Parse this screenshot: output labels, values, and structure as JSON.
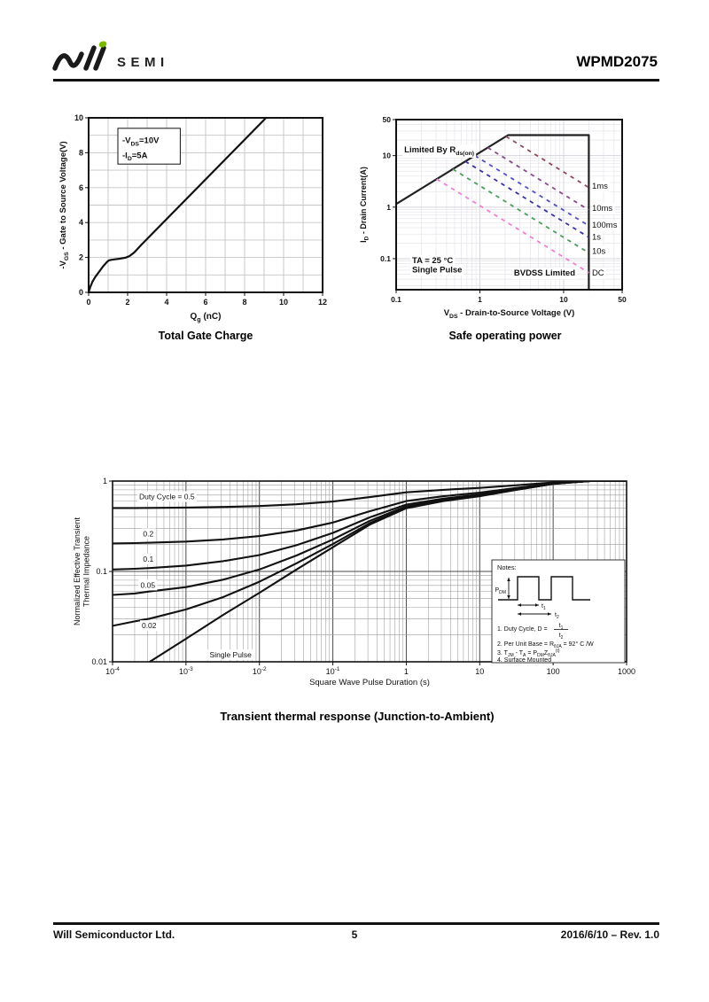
{
  "header": {
    "logo_sub": "SEMI",
    "part_number": "WPMD2075",
    "logo_dot_color": "#7ab800"
  },
  "footer": {
    "company": "Will Semiconductor Ltd.",
    "page": "5",
    "revision": "2016/6/10 – Rev. 1.0"
  },
  "chart_data": [
    {
      "id": "gate-charge",
      "type": "line",
      "title": "Total Gate Charge",
      "x_axis": {
        "scale": "linear",
        "min": 0,
        "max": 12,
        "grid_step": 1,
        "ticks": [
          0,
          2,
          4,
          6,
          8,
          10,
          12
        ],
        "tick_labels": [
          "0",
          "2",
          "4",
          "6",
          "8",
          "10",
          "12"
        ],
        "label": "Q_{g} (nC)"
      },
      "y_axis": {
        "scale": "linear",
        "min": 0,
        "max": 10,
        "grid_step": 1,
        "ticks": [
          0,
          2,
          4,
          6,
          8,
          10
        ],
        "tick_labels": [
          "0",
          "2",
          "4",
          "6",
          "8",
          "10"
        ],
        "label": "-V_{GS} - Gate to Source Voltage(V)"
      },
      "legend_box": {
        "x0": 1.5,
        "x1": 4.7,
        "y0": 7.35,
        "y1": 9.4,
        "lines": [
          "-V_{DS}=10V",
          "-I_{D}=5A"
        ],
        "line_y": [
          8.55,
          7.7
        ]
      },
      "series": [
        {
          "name": "gate-charge-curve",
          "color": "#111111",
          "width": 2.2,
          "points": [
            [
              0,
              0
            ],
            [
              0.08,
              0.3
            ],
            [
              0.2,
              0.62
            ],
            [
              0.35,
              0.9
            ],
            [
              0.55,
              1.2
            ],
            [
              0.75,
              1.5
            ],
            [
              0.95,
              1.75
            ],
            [
              1.05,
              1.84
            ],
            [
              1.3,
              1.89
            ],
            [
              1.6,
              1.93
            ],
            [
              1.9,
              1.99
            ],
            [
              2.1,
              2.08
            ],
            [
              2.35,
              2.3
            ],
            [
              2.7,
              2.72
            ],
            [
              9.1,
              10
            ]
          ]
        }
      ]
    },
    {
      "id": "soa",
      "type": "line",
      "title": "Safe operating power",
      "x_axis": {
        "scale": "log",
        "min": 0.1,
        "max": 50,
        "ticks": [
          0.1,
          1,
          10,
          50
        ],
        "tick_labels": [
          "0.1",
          "1",
          "10",
          "50"
        ],
        "label": "V_{DS} - Drain-to-Source Voltage (V)"
      },
      "y_axis": {
        "scale": "log",
        "min": 0.025,
        "max": 50,
        "ticks": [
          0.1,
          1,
          10,
          50
        ],
        "tick_labels": [
          "0.1",
          "1",
          "10",
          "50"
        ],
        "label": "I_{D} - Drain Current(A)"
      },
      "series": [
        {
          "name": "rdson-bvdss-boundary",
          "color": "#222222",
          "width": 2.2,
          "points": [
            [
              0.1,
              1.15
            ],
            [
              2.17,
              25
            ],
            [
              20,
              25
            ],
            [
              20,
              0.025
            ]
          ]
        },
        {
          "name": "1ms",
          "label": "1ms",
          "color": "#8c4a5a",
          "width": 1.8,
          "dash": "4.5 5",
          "points": [
            [
              2.05,
              23.6
            ],
            [
              20,
              2.4
            ]
          ]
        },
        {
          "name": "10ms",
          "label": "10ms",
          "color": "#8a4a8a",
          "width": 1.8,
          "dash": "4.5 5",
          "points": [
            [
              1.24,
              14.3
            ],
            [
              20,
              0.88
            ]
          ]
        },
        {
          "name": "100ms",
          "label": "100ms",
          "color": "#5050c8",
          "width": 1.8,
          "dash": "4.5 5",
          "points": [
            [
              0.87,
              10.0
            ],
            [
              20,
              0.435
            ]
          ]
        },
        {
          "name": "1s",
          "label": "1s",
          "color": "#3535a0",
          "width": 1.8,
          "dash": "4.5 5",
          "points": [
            [
              0.67,
              7.75
            ],
            [
              20,
              0.26
            ]
          ]
        },
        {
          "name": "10s",
          "label": "10s",
          "color": "#4a9e5c",
          "width": 1.8,
          "dash": "4.5 5",
          "points": [
            [
              0.475,
              5.47
            ],
            [
              20,
              0.13
            ]
          ]
        },
        {
          "name": "dc",
          "label": "DC",
          "color": "#ef7fd4",
          "width": 1.8,
          "dash": "4.5 5",
          "points": [
            [
              0.305,
              3.5
            ],
            [
              20,
              0.0535
            ]
          ]
        }
      ],
      "labels": [
        {
          "name": "limited-by-rdson-label",
          "text": "Limited By R_{ds(on)}",
          "x": 0.125,
          "y": 11.5,
          "bold": true,
          "size": 9.5,
          "bg": true
        },
        {
          "name": "ta-condition-label",
          "text": "TA = 25 °C",
          "x": 0.155,
          "y": 0.082,
          "bold": true,
          "size": 9.5,
          "bg": true
        },
        {
          "name": "single-pulse-condition-label",
          "text": "Single Pulse",
          "x": 0.155,
          "y": 0.0545,
          "bold": true,
          "size": 9.5,
          "bg": true
        },
        {
          "name": "bvdss-limited-label",
          "text": "BVDSS Limited",
          "x": 2.55,
          "y": 0.047,
          "bold": true,
          "size": 9.5,
          "bg": true
        },
        {
          "name": "curve-label-1ms",
          "text": "1ms",
          "x": 21.8,
          "y": 2.3,
          "size": 9.5,
          "bg": true
        },
        {
          "name": "curve-label-10ms",
          "text": "10ms",
          "x": 21.8,
          "y": 0.85,
          "size": 9.5,
          "bg": true
        },
        {
          "name": "curve-label-100ms",
          "text": "100ms",
          "x": 21.8,
          "y": 0.4,
          "size": 9.5,
          "bg": true
        },
        {
          "name": "curve-label-1s",
          "text": "1s",
          "x": 21.8,
          "y": 0.235,
          "size": 9.5,
          "bg": true
        },
        {
          "name": "curve-label-10s",
          "text": "10s",
          "x": 21.8,
          "y": 0.125,
          "size": 9.5,
          "bg": true
        },
        {
          "name": "curve-label-dc",
          "text": "DC",
          "x": 21.8,
          "y": 0.047,
          "size": 9.5,
          "bg": true
        }
      ]
    },
    {
      "id": "transient-thermal",
      "type": "line",
      "title": "Transient thermal response (Junction-to-Ambient)",
      "x_axis": {
        "scale": "log",
        "min": 0.0001,
        "max": 1000,
        "ticks": [
          0.0001,
          0.001,
          0.01,
          0.1,
          1,
          10,
          100,
          1000
        ],
        "tick_labels": [
          "10^{-4}",
          "10^{-3}",
          "10^{-2}",
          "10^{-1}",
          "1",
          "10",
          "100",
          "1000"
        ],
        "label": "Square Wave Pulse Duration (s)"
      },
      "y_axis": {
        "scale": "log",
        "min": 0.01,
        "max": 1,
        "ticks": [
          1,
          0.1,
          0.01
        ],
        "tick_labels": [
          "1",
          "0.1",
          "0.01"
        ],
        "label": [
          "Normalized Effective Transient",
          "Thermal Impedance"
        ]
      },
      "x_shared": [
        0.0001,
        0.0002,
        0.00032,
        0.001,
        0.0032,
        0.01,
        0.032,
        0.1,
        0.32,
        1,
        3.2,
        10,
        32,
        100,
        320,
        1000
      ],
      "series": [
        {
          "name": "duty-0.5",
          "duty_cycle": 0.5,
          "color": "#111111",
          "width": 2.1,
          "y": [
            0.503,
            0.504,
            0.505,
            0.509,
            0.517,
            0.529,
            0.553,
            0.593,
            0.665,
            0.75,
            0.8,
            0.84,
            0.9,
            0.965,
            1.0,
            1.0
          ]
        },
        {
          "name": "duty-0.2",
          "duty_cycle": 0.2,
          "color": "#111111",
          "width": 2.1,
          "y": [
            0.204,
            0.206,
            0.208,
            0.214,
            0.226,
            0.246,
            0.284,
            0.348,
            0.464,
            0.6,
            0.68,
            0.744,
            0.84,
            0.944,
            1.0,
            1.0
          ]
        },
        {
          "name": "duty-0.1",
          "duty_cycle": 0.1,
          "color": "#111111",
          "width": 2.1,
          "y": [
            0.105,
            0.107,
            0.109,
            0.116,
            0.13,
            0.152,
            0.195,
            0.267,
            0.397,
            0.55,
            0.64,
            0.712,
            0.82,
            0.937,
            1.0,
            1.0
          ]
        },
        {
          "name": "duty-0.05",
          "duty_cycle": 0.05,
          "color": "#111111",
          "width": 2.1,
          "y": [
            0.055,
            0.057,
            0.06,
            0.067,
            0.081,
            0.105,
            0.15,
            0.226,
            0.364,
            0.525,
            0.62,
            0.696,
            0.81,
            0.934,
            1.0,
            1.0
          ]
        },
        {
          "name": "duty-0.02",
          "duty_cycle": 0.02,
          "color": "#111111",
          "width": 2.1,
          "y": [
            0.025,
            0.028,
            0.03,
            0.038,
            0.052,
            0.077,
            0.123,
            0.201,
            0.343,
            0.51,
            0.608,
            0.686,
            0.804,
            0.931,
            1.0,
            1.0
          ]
        },
        {
          "name": "single-pulse",
          "color": "#111111",
          "width": 2.1,
          "y": [
            0.0055,
            0.0078,
            0.01,
            0.018,
            0.033,
            0.058,
            0.105,
            0.185,
            0.33,
            0.5,
            0.6,
            0.68,
            0.8,
            0.93,
            1.0,
            1.0
          ]
        }
      ],
      "labels": [
        {
          "name": "duty-0.5-label",
          "text": "Duty Cycle = 0.5",
          "x": 0.00023,
          "y": 0.63,
          "size": 8.5,
          "bg": true
        },
        {
          "name": "duty-0.2-label",
          "text": "0.2",
          "x": 0.00026,
          "y": 0.245,
          "size": 8.5,
          "bg": true
        },
        {
          "name": "duty-0.1-label",
          "text": "0.1",
          "x": 0.00026,
          "y": 0.128,
          "size": 8.5,
          "bg": true
        },
        {
          "name": "duty-0.05-label",
          "text": "0.05",
          "x": 0.00024,
          "y": 0.066,
          "size": 8.5,
          "bg": true
        },
        {
          "name": "duty-0.02-label",
          "text": "0.02",
          "x": 0.00025,
          "y": 0.0235,
          "size": 8.5,
          "bg": true
        },
        {
          "name": "single-pulse-label",
          "text": "Single Pulse",
          "x": 0.0021,
          "y": 0.0112,
          "size": 8.5,
          "bg": true
        }
      ],
      "notes": {
        "heading": "Notes:",
        "pdm_label": "P_{DM}",
        "t1_label": "t_{1}",
        "t2_label": "t_{2}",
        "line1_prefix": "1. Duty Cycle, D =",
        "line1_num": "t_{1}",
        "line1_den": "t_{2}",
        "line2": "2. Per Unit Base = R_{θJA} = 92° C /W",
        "line3": "3. T_{JM} - T_{A} = P_{DM}Z_{θJA}^{(t)}",
        "line4": "4. Surface Mounted"
      }
    }
  ]
}
